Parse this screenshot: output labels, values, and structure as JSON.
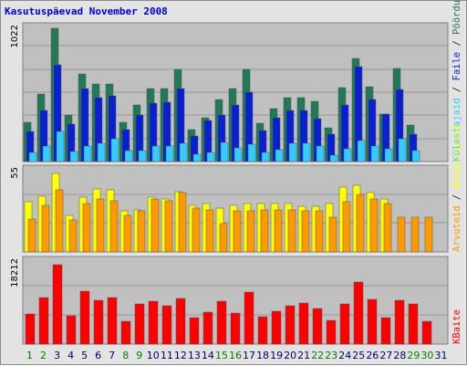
{
  "title": "Kasutuspäevad November 2008",
  "colors": {
    "title": "#0000cc",
    "background": "#e3e3e3",
    "panel": "#c0c0c0",
    "grid": "#999999",
    "dark_green": "#207a55",
    "blue": "#0a1ed2",
    "light_blue": "#33ccff",
    "yellow": "#ffff00",
    "orange": "#ff9900",
    "red": "#ff0000",
    "weekend_day": "#008000",
    "weekday": "#000066"
  },
  "chart_data": [
    {
      "type": "bar",
      "panel": "top",
      "categories": [
        "1",
        "2",
        "3",
        "4",
        "5",
        "6",
        "7",
        "8",
        "9",
        "10",
        "11",
        "12",
        "13",
        "14",
        "15",
        "16",
        "17",
        "18",
        "19",
        "20",
        "21",
        "22",
        "23",
        "24",
        "25",
        "26",
        "27",
        "28",
        "29",
        "30",
        "31"
      ],
      "ylim": [
        0,
        1022
      ],
      "ytick_label": "1022",
      "legend": [
        "Pöördumisi",
        "Faile",
        "Külastajaid"
      ],
      "series": [
        {
          "name": "Pöördumisi",
          "color": "#207a55",
          "values": [
            300,
            510,
            1010,
            355,
            660,
            585,
            590,
            300,
            425,
            555,
            555,
            700,
            245,
            330,
            470,
            555,
            700,
            290,
            400,
            480,
            480,
            455,
            255,
            560,
            780,
            565,
            360,
            705,
            275,
            0,
            0
          ]
        },
        {
          "name": "Faile",
          "color": "#0a1ed2",
          "values": [
            225,
            385,
            730,
            280,
            555,
            485,
            495,
            240,
            355,
            445,
            450,
            555,
            190,
            310,
            355,
            430,
            525,
            235,
            330,
            385,
            390,
            325,
            210,
            425,
            720,
            470,
            360,
            545,
            205,
            0,
            0
          ]
        },
        {
          "name": "Külastajaid",
          "color": "#33ccff",
          "values": [
            70,
            120,
            230,
            75,
            120,
            140,
            170,
            85,
            85,
            120,
            120,
            140,
            55,
            70,
            145,
            105,
            130,
            70,
            90,
            140,
            140,
            120,
            45,
            95,
            160,
            120,
            100,
            170,
            85,
            0,
            0
          ]
        }
      ]
    },
    {
      "type": "bar",
      "panel": "middle",
      "categories": [
        "1",
        "2",
        "3",
        "4",
        "5",
        "6",
        "7",
        "8",
        "9",
        "10",
        "11",
        "12",
        "13",
        "14",
        "15",
        "16",
        "17",
        "18",
        "19",
        "20",
        "21",
        "22",
        "23",
        "24",
        "25",
        "26",
        "27",
        "28",
        "29",
        "30",
        "31"
      ],
      "ylim": [
        0,
        55
      ],
      "ytick_label": "55",
      "legend": [
        "Külastajaid",
        "Arvuteid"
      ],
      "series": [
        {
          "name": "Külastajaid",
          "color": "#ffff00",
          "values": [
            33,
            37,
            52,
            24,
            36,
            42,
            41,
            27,
            28,
            36,
            35,
            40,
            31,
            32,
            29,
            31,
            32,
            32,
            32,
            32,
            30,
            30,
            32,
            43,
            44,
            39,
            35,
            0,
            0,
            0,
            0
          ]
        },
        {
          "name": "Arvuteid",
          "color": "#ff9900",
          "values": [
            22,
            31,
            41,
            21,
            32,
            35,
            34,
            24,
            27,
            35,
            34,
            39,
            29,
            28,
            19,
            27,
            27,
            28,
            28,
            28,
            27,
            27,
            23,
            33,
            38,
            35,
            32,
            23,
            23,
            23,
            0
          ]
        }
      ]
    },
    {
      "type": "bar",
      "panel": "bottom",
      "categories": [
        "1",
        "2",
        "3",
        "4",
        "5",
        "6",
        "7",
        "8",
        "9",
        "10",
        "11",
        "12",
        "13",
        "14",
        "15",
        "16",
        "17",
        "18",
        "19",
        "20",
        "21",
        "22",
        "23",
        "24",
        "25",
        "26",
        "27",
        "28",
        "29",
        "30",
        "31"
      ],
      "ylim": [
        0,
        18212
      ],
      "ytick_label": "18212",
      "legend": [
        "KBaite"
      ],
      "series": [
        {
          "name": "KBaite",
          "color": "#ff0000",
          "values": [
            6500,
            10000,
            17200,
            6200,
            11400,
            9600,
            10000,
            5000,
            8700,
            9300,
            8300,
            9900,
            5800,
            7000,
            9400,
            6800,
            11300,
            5900,
            7200,
            8300,
            9000,
            7800,
            5200,
            8700,
            13500,
            9700,
            5800,
            9600,
            8700,
            5000,
            0
          ]
        }
      ]
    }
  ]
}
